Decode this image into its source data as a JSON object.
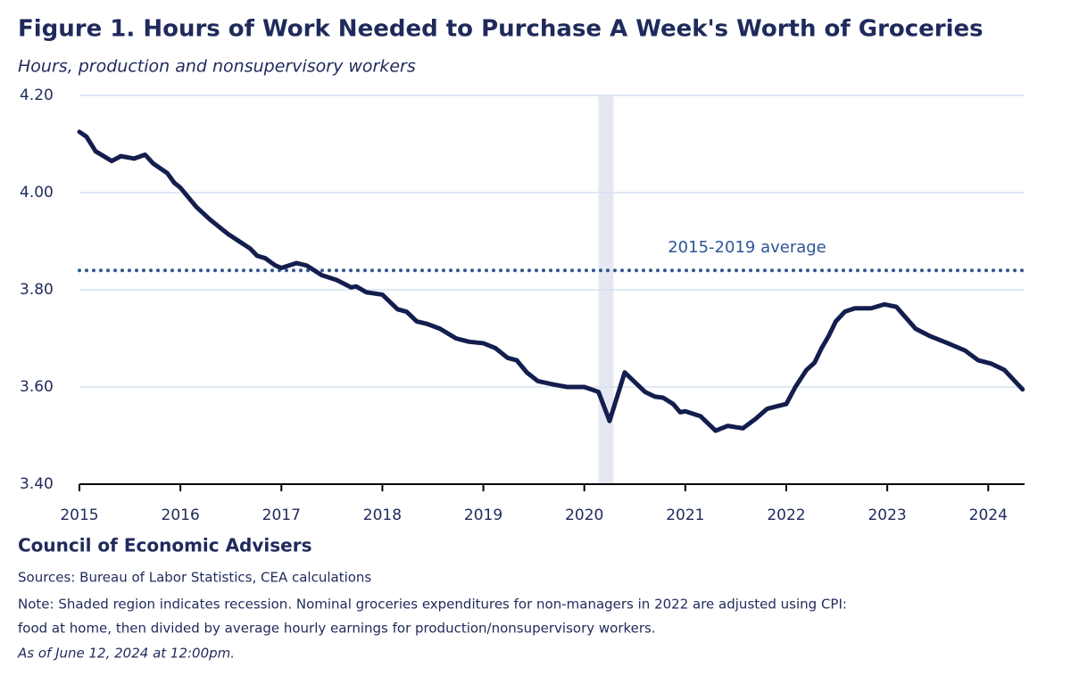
{
  "chart_data": {
    "type": "line",
    "title": "Figure 1. Hours of Work Needed to Purchase A Week's Worth of Groceries",
    "subtitle": "Hours, production and nonsupervisory workers",
    "x": [
      2015.0,
      2015.07,
      2015.16,
      2015.32,
      2015.41,
      2015.54,
      2015.65,
      2015.73,
      2015.87,
      2015.94,
      2016.0,
      2016.16,
      2016.29,
      2016.47,
      2016.58,
      2016.69,
      2016.76,
      2016.84,
      2016.94,
      2017.0,
      2017.15,
      2017.25,
      2017.4,
      2017.55,
      2017.69,
      2017.74,
      2017.84,
      2018.0,
      2018.15,
      2018.24,
      2018.34,
      2018.44,
      2018.57,
      2018.73,
      2018.86,
      2019.0,
      2019.12,
      2019.24,
      2019.33,
      2019.43,
      2019.54,
      2019.7,
      2019.83,
      2020.0,
      2020.14,
      2020.25,
      2020.4,
      2020.5,
      2020.6,
      2020.7,
      2020.78,
      2020.88,
      2020.95,
      2021.0,
      2021.15,
      2021.3,
      2021.42,
      2021.57,
      2021.7,
      2021.81,
      2021.9,
      2022.0,
      2022.09,
      2022.2,
      2022.28,
      2022.35,
      2022.42,
      2022.49,
      2022.58,
      2022.68,
      2022.84,
      2022.97,
      2023.09,
      2023.28,
      2023.42,
      2023.6,
      2023.77,
      2023.9,
      2024.03,
      2024.16,
      2024.34
    ],
    "series": [
      {
        "name": "Hours of work",
        "color": "#141e4e",
        "values": [
          4.125,
          4.115,
          4.085,
          4.065,
          4.075,
          4.07,
          4.078,
          4.06,
          4.04,
          4.02,
          4.01,
          3.97,
          3.945,
          3.915,
          3.9,
          3.885,
          3.87,
          3.865,
          3.85,
          3.845,
          3.855,
          3.85,
          3.83,
          3.82,
          3.805,
          3.807,
          3.795,
          3.79,
          3.76,
          3.755,
          3.735,
          3.73,
          3.72,
          3.7,
          3.693,
          3.69,
          3.68,
          3.66,
          3.655,
          3.63,
          3.612,
          3.605,
          3.6,
          3.6,
          3.59,
          3.53,
          3.63,
          3.61,
          3.59,
          3.58,
          3.578,
          3.565,
          3.548,
          3.55,
          3.54,
          3.51,
          3.52,
          3.515,
          3.535,
          3.555,
          3.56,
          3.565,
          3.6,
          3.635,
          3.65,
          3.68,
          3.705,
          3.735,
          3.755,
          3.762,
          3.762,
          3.77,
          3.765,
          3.72,
          3.705,
          3.69,
          3.675,
          3.655,
          3.648,
          3.635,
          3.595
        ]
      }
    ],
    "average": {
      "label": "2015-2019 average",
      "value": 3.84,
      "color": "#2e5597"
    },
    "recession": [
      2020.14,
      2020.29
    ],
    "xlim": [
      2015,
      2024.36
    ],
    "xticks": [
      2015,
      2016,
      2017,
      2018,
      2019,
      2020,
      2021,
      2022,
      2023,
      2024
    ],
    "ylim": [
      3.4,
      4.2
    ],
    "yticks": [
      {
        "value": 3.4,
        "label": "3.40"
      },
      {
        "value": 3.6,
        "label": "3.60"
      },
      {
        "value": 3.8,
        "label": "3.80"
      },
      {
        "value": 4.0,
        "label": "4.00"
      },
      {
        "value": 4.2,
        "label": "4.20"
      }
    ],
    "grid": true,
    "footer": {
      "org": "Council of Economic Advisers",
      "sources": "Sources: Bureau of Labor Statistics, CEA calculations",
      "note": [
        "Note: Shaded region indicates recession. Nominal groceries expenditures for non-managers in 2022 are adjusted using CPI:",
        "food at home, then divided by average hourly earnings for production/nonsupervisory workers."
      ],
      "as_of": "As of June 12, 2024 at 12:00pm."
    }
  }
}
